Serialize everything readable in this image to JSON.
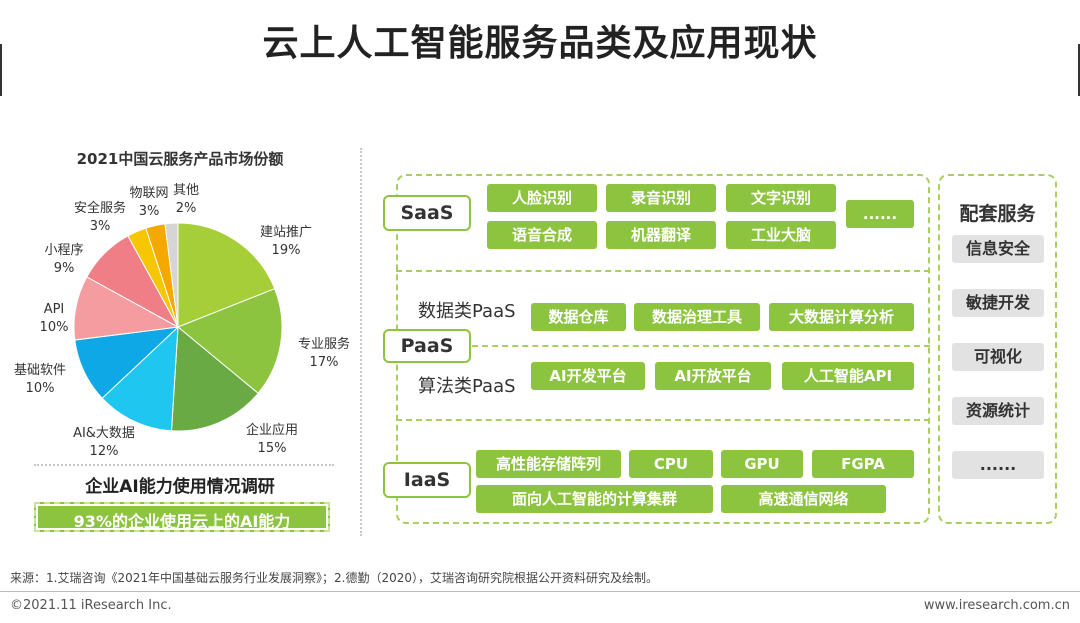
{
  "title": "云上人工智能服务品类及应用现状",
  "chart_data": {
    "type": "pie",
    "title": "2021中国云服务产品市场份额",
    "categories": [
      "建站推广",
      "专业服务",
      "企业应用",
      "AI&大数据",
      "基础软件",
      "API",
      "小程序",
      "安全服务",
      "物联网",
      "其他"
    ],
    "values": [
      19,
      17,
      15,
      12,
      10,
      10,
      9,
      3,
      3,
      2
    ],
    "value_labels": [
      "19%",
      "17%",
      "15%",
      "12%",
      "10%",
      "10%",
      "9%",
      "3%",
      "3%",
      "2%"
    ],
    "colors": [
      "#a6ce39",
      "#8dc43f",
      "#6aaa45",
      "#1fc6f0",
      "#0fa8e6",
      "#f59ca0",
      "#ef7e86",
      "#f6c600",
      "#f5a800",
      "#d5d5d5"
    ]
  },
  "survey": {
    "title": "企业AI能力使用情况调研",
    "highlight": "93%的企业使用云上的AI能力"
  },
  "saas": {
    "label": "SaaS",
    "items": [
      "人脸识别",
      "录音识别",
      "文字识别",
      "语音合成",
      "机器翻译",
      "工业大脑",
      "......"
    ]
  },
  "paas": {
    "label": "PaaS",
    "data_label": "数据类PaaS",
    "data_items": [
      "数据仓库",
      "数据治理工具",
      "大数据计算分析"
    ],
    "algo_label": "算法类PaaS",
    "algo_items": [
      "AI开发平台",
      "AI开放平台",
      "人工智能API"
    ]
  },
  "iaas": {
    "label": "IaaS",
    "items": [
      "高性能存储阵列",
      "CPU",
      "GPU",
      "FGPA",
      "面向人工智能的计算集群",
      "高速通信网络"
    ]
  },
  "support": {
    "title": "配套服务",
    "items": [
      "信息安全",
      "敏捷开发",
      "可视化",
      "资源统计",
      "......"
    ]
  },
  "footer": {
    "source": "来源：1.艾瑞咨询《2021年中国基础云服务行业发展洞察》；2.德勤（2020），艾瑞咨询研究院根据公开资料研究及绘制。",
    "copyright": "©2021.11 iResearch Inc.",
    "url": "www.iresearch.com.cn"
  },
  "colors": {
    "accent": "#8dc43f",
    "gray": "#e2e2e2"
  }
}
